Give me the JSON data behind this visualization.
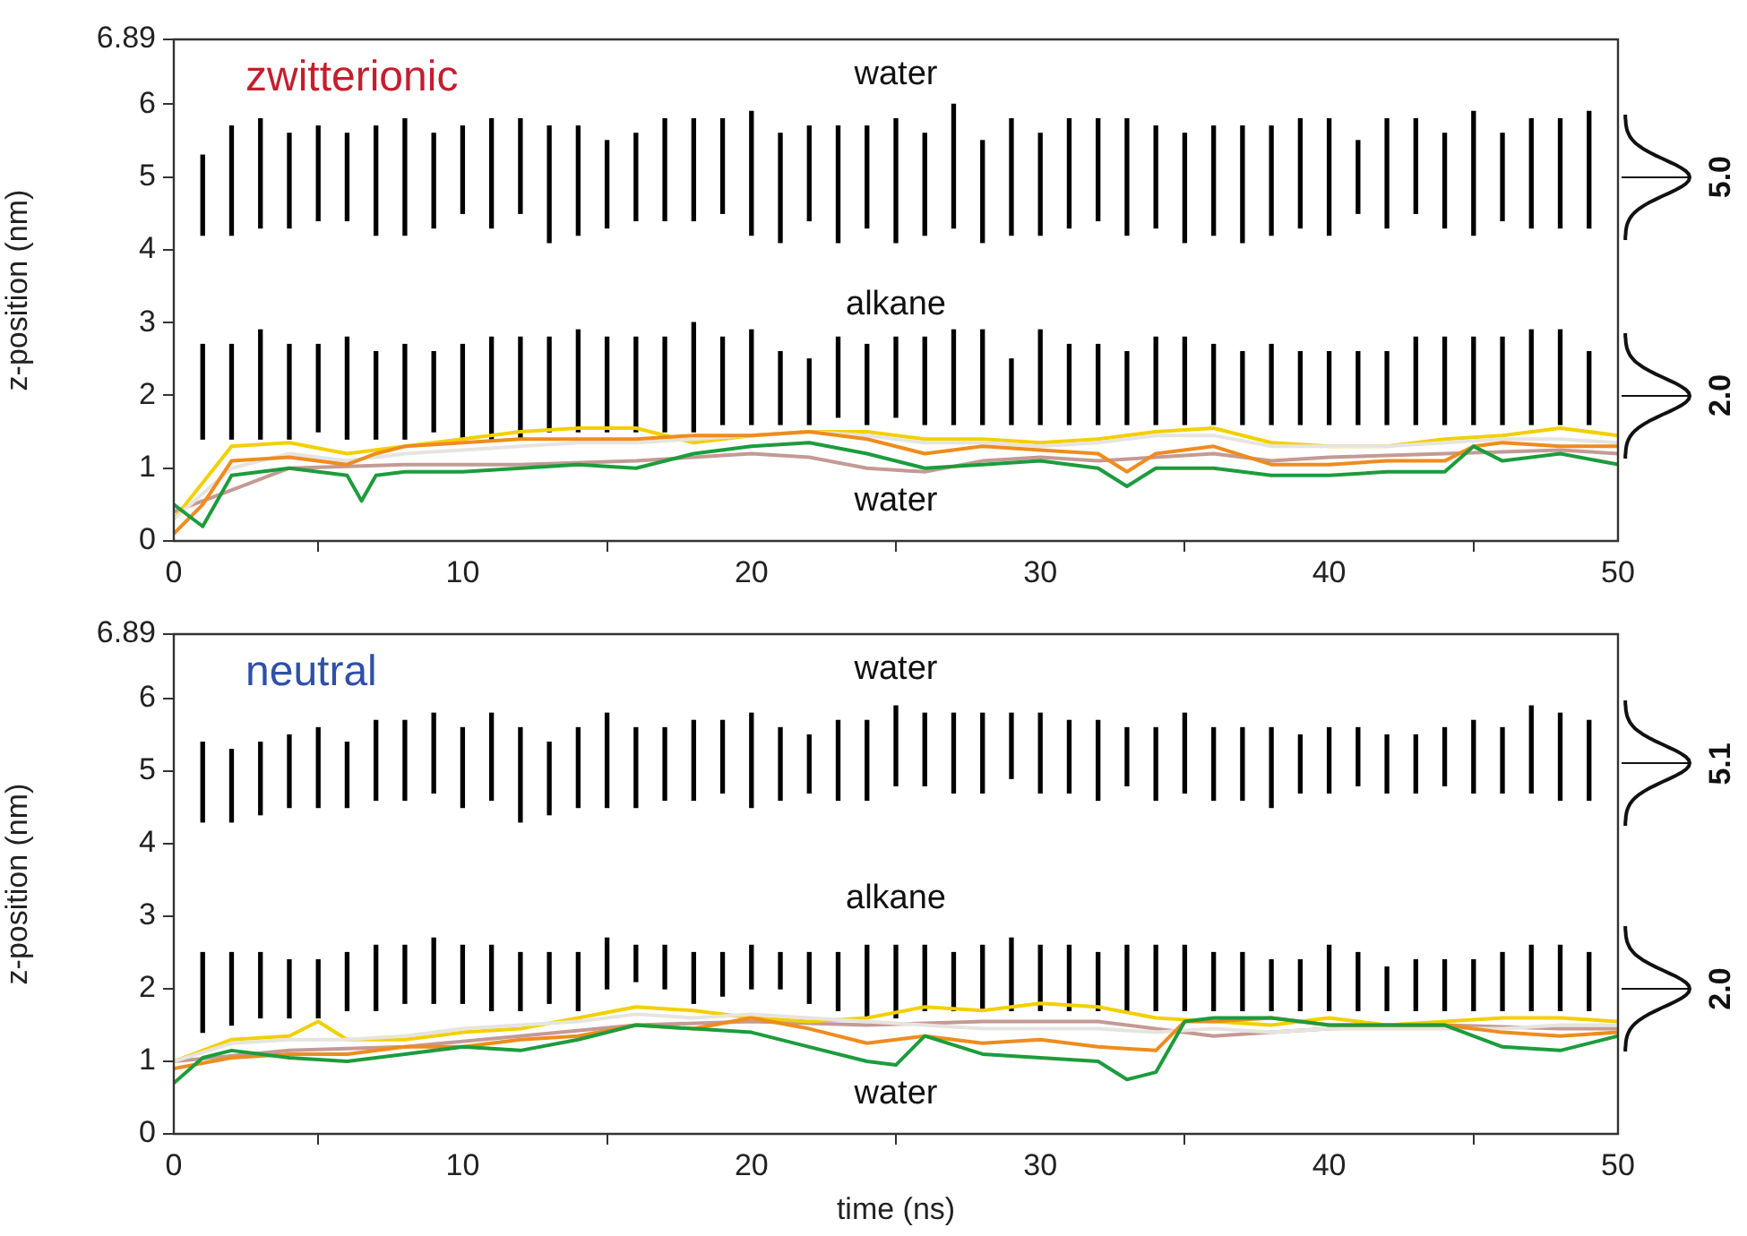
{
  "chart_data": [
    {
      "type": "line",
      "title": "zwitterionic",
      "ylabel": "z-position (nm)",
      "xlim": [
        0,
        50
      ],
      "xticks": [
        0,
        10,
        20,
        30,
        40,
        50
      ],
      "ylim": [
        0,
        6.89
      ],
      "yticks": [
        0,
        1,
        2,
        3,
        4,
        5,
        6,
        6.89
      ],
      "x": [
        1,
        2,
        3,
        4,
        5,
        6,
        7,
        8,
        9,
        10,
        11,
        12,
        13,
        14,
        15,
        16,
        17,
        18,
        19,
        20,
        21,
        22,
        23,
        24,
        25,
        26,
        27,
        28,
        29,
        30,
        31,
        32,
        33,
        34,
        35,
        36,
        37,
        38,
        39,
        40,
        41,
        42,
        43,
        44,
        45,
        46,
        47,
        48,
        49
      ],
      "annotations": [
        "water",
        "alkane",
        "water",
        "5.0",
        "2.0"
      ],
      "series": [
        {
          "type": "bar",
          "color": "#000000",
          "base": [
            4.2,
            4.2,
            4.3,
            4.3,
            4.4,
            4.4,
            4.2,
            4.2,
            4.3,
            4.5,
            4.3,
            4.5,
            4.1,
            4.2,
            4.3,
            4.4,
            4.4,
            4.4,
            4.5,
            4.2,
            4.1,
            4.4,
            4.1,
            4.3,
            4.1,
            4.2,
            4.3,
            4.1,
            4.2,
            4.2,
            4.3,
            4.4,
            4.2,
            4.3,
            4.1,
            4.2,
            4.1,
            4.2,
            4.3,
            4.2,
            4.5,
            4.3,
            4.5,
            4.3,
            4.2,
            4.4,
            4.3,
            4.3,
            4.3
          ],
          "values": [
            1.1,
            1.5,
            1.5,
            1.3,
            1.3,
            1.2,
            1.5,
            1.6,
            1.3,
            1.2,
            1.5,
            1.3,
            1.6,
            1.5,
            1.2,
            1.2,
            1.4,
            1.4,
            1.3,
            1.7,
            1.5,
            1.3,
            1.6,
            1.4,
            1.7,
            1.4,
            1.7,
            1.4,
            1.6,
            1.4,
            1.5,
            1.4,
            1.6,
            1.4,
            1.5,
            1.5,
            1.6,
            1.5,
            1.5,
            1.6,
            1.0,
            1.5,
            1.3,
            1.3,
            1.7,
            1.2,
            1.5,
            1.5,
            1.6
          ]
        },
        {
          "type": "bar",
          "color": "#000000",
          "base": [
            1.4,
            1.4,
            1.4,
            1.4,
            1.5,
            1.4,
            1.4,
            1.4,
            1.5,
            1.4,
            1.4,
            1.4,
            1.5,
            1.5,
            1.5,
            1.5,
            1.5,
            1.5,
            1.6,
            1.6,
            1.6,
            1.6,
            1.7,
            1.6,
            1.7,
            1.6,
            1.6,
            1.6,
            1.6,
            1.6,
            1.6,
            1.6,
            1.6,
            1.6,
            1.6,
            1.6,
            1.6,
            1.6,
            1.6,
            1.6,
            1.6,
            1.6,
            1.6,
            1.6,
            1.6,
            1.6,
            1.6,
            1.6,
            1.6
          ],
          "values": [
            1.3,
            1.3,
            1.5,
            1.3,
            1.2,
            1.4,
            1.2,
            1.3,
            1.1,
            1.3,
            1.4,
            1.4,
            1.3,
            1.4,
            1.3,
            1.3,
            1.3,
            1.5,
            1.2,
            1.3,
            1.0,
            0.9,
            1.1,
            1.1,
            1.1,
            1.2,
            1.3,
            1.3,
            0.9,
            1.3,
            1.1,
            1.1,
            1.0,
            1.2,
            1.2,
            1.1,
            1.0,
            1.1,
            1.0,
            1.0,
            1.0,
            1.0,
            1.2,
            1.2,
            1.2,
            1.2,
            1.3,
            1.3,
            1.0
          ]
        },
        {
          "color": "#c49a94",
          "x": [
            0,
            4,
            8,
            12,
            16,
            20,
            22,
            24,
            26,
            28,
            30,
            32,
            34,
            36,
            38,
            40,
            44,
            48,
            50
          ],
          "values": [
            0.4,
            1.0,
            1.05,
            1.05,
            1.1,
            1.2,
            1.15,
            1.0,
            0.95,
            1.1,
            1.15,
            1.1,
            1.15,
            1.2,
            1.1,
            1.15,
            1.2,
            1.25,
            1.2
          ]
        },
        {
          "color": "#f2d000",
          "x": [
            0,
            2,
            4,
            6,
            8,
            10,
            12,
            14,
            16,
            18,
            20,
            22,
            24,
            26,
            28,
            30,
            32,
            34,
            36,
            38,
            40,
            42,
            44,
            46,
            48,
            50
          ],
          "values": [
            0.3,
            1.3,
            1.35,
            1.2,
            1.3,
            1.4,
            1.5,
            1.55,
            1.55,
            1.35,
            1.45,
            1.5,
            1.5,
            1.4,
            1.4,
            1.35,
            1.4,
            1.5,
            1.55,
            1.35,
            1.3,
            1.3,
            1.4,
            1.45,
            1.55,
            1.45
          ]
        },
        {
          "color": "#e6e4df",
          "x": [
            0,
            2,
            4,
            6,
            8,
            10,
            12,
            14,
            16,
            18,
            20,
            22,
            24,
            26,
            28,
            30,
            32,
            34,
            36,
            38,
            40,
            42,
            44,
            46,
            48,
            50
          ],
          "values": [
            0.3,
            1.0,
            1.2,
            1.1,
            1.2,
            1.25,
            1.3,
            1.35,
            1.35,
            1.4,
            1.45,
            1.5,
            1.45,
            1.35,
            1.35,
            1.3,
            1.35,
            1.45,
            1.45,
            1.3,
            1.3,
            1.3,
            1.35,
            1.4,
            1.4,
            1.35
          ]
        },
        {
          "color": "#ee8c1e",
          "x": [
            0,
            1,
            2,
            4,
            6,
            7,
            8,
            10,
            12,
            14,
            16,
            18,
            20,
            22,
            24,
            26,
            28,
            30,
            32,
            33,
            34,
            36,
            38,
            40,
            42,
            44,
            45,
            46,
            48,
            50
          ],
          "values": [
            0.1,
            0.5,
            1.1,
            1.15,
            1.05,
            1.2,
            1.3,
            1.35,
            1.4,
            1.4,
            1.4,
            1.45,
            1.45,
            1.5,
            1.4,
            1.2,
            1.3,
            1.25,
            1.2,
            0.95,
            1.2,
            1.3,
            1.05,
            1.05,
            1.1,
            1.1,
            1.3,
            1.35,
            1.3,
            1.3
          ]
        },
        {
          "color": "#1c9c3c",
          "x": [
            0,
            1,
            2,
            4,
            6,
            6.5,
            7,
            8,
            10,
            12,
            14,
            16,
            18,
            20,
            22,
            24,
            26,
            28,
            30,
            32,
            33,
            34,
            36,
            38,
            40,
            42,
            44,
            45,
            46,
            48,
            50
          ],
          "values": [
            0.5,
            0.2,
            0.9,
            1.0,
            0.9,
            0.55,
            0.9,
            0.95,
            0.95,
            1.0,
            1.05,
            1.0,
            1.2,
            1.3,
            1.35,
            1.2,
            1.0,
            1.05,
            1.1,
            1.0,
            0.75,
            1.0,
            1.0,
            0.9,
            0.9,
            0.95,
            0.95,
            1.3,
            1.1,
            1.2,
            1.05
          ]
        }
      ]
    },
    {
      "type": "line",
      "title": "neutral",
      "xlabel": "time (ns)",
      "ylabel": "z-position (nm)",
      "xlim": [
        0,
        50
      ],
      "xticks": [
        0,
        10,
        20,
        30,
        40,
        50
      ],
      "ylim": [
        0,
        6.89
      ],
      "yticks": [
        0,
        1,
        2,
        3,
        4,
        5,
        6,
        6.89
      ],
      "x": [
        1,
        2,
        3,
        4,
        5,
        6,
        7,
        8,
        9,
        10,
        11,
        12,
        13,
        14,
        15,
        16,
        17,
        18,
        19,
        20,
        21,
        22,
        23,
        24,
        25,
        26,
        27,
        28,
        29,
        30,
        31,
        32,
        33,
        34,
        35,
        36,
        37,
        38,
        39,
        40,
        41,
        42,
        43,
        44,
        45,
        46,
        47,
        48,
        49
      ],
      "annotations": [
        "water",
        "alkane",
        "water",
        "5.1",
        "2.0"
      ],
      "series": [
        {
          "type": "bar",
          "color": "#000000",
          "base": [
            4.3,
            4.3,
            4.4,
            4.5,
            4.5,
            4.5,
            4.6,
            4.6,
            4.7,
            4.5,
            4.6,
            4.3,
            4.4,
            4.5,
            4.5,
            4.5,
            4.6,
            4.6,
            4.7,
            4.5,
            4.6,
            4.7,
            4.6,
            4.6,
            4.8,
            4.8,
            4.7,
            4.7,
            4.9,
            4.7,
            4.7,
            4.6,
            4.8,
            4.6,
            4.7,
            4.6,
            4.6,
            4.5,
            4.7,
            4.7,
            4.8,
            4.7,
            4.7,
            4.8,
            4.7,
            4.7,
            4.7,
            4.6,
            4.6
          ],
          "values": [
            1.1,
            1.0,
            1.0,
            1.0,
            1.1,
            0.9,
            1.1,
            1.1,
            1.1,
            1.1,
            1.2,
            1.3,
            1.0,
            1.1,
            1.3,
            1.1,
            1.0,
            1.1,
            1.0,
            1.3,
            1.0,
            0.8,
            1.1,
            1.1,
            1.1,
            1.0,
            1.1,
            1.1,
            0.9,
            1.1,
            1.0,
            1.1,
            0.8,
            1.0,
            1.1,
            1.0,
            1.0,
            1.1,
            0.8,
            0.9,
            0.8,
            0.8,
            0.8,
            0.8,
            1.0,
            0.9,
            1.2,
            1.2,
            1.1
          ]
        },
        {
          "type": "bar",
          "color": "#000000",
          "base": [
            1.4,
            1.5,
            1.6,
            1.6,
            1.6,
            1.7,
            1.7,
            1.8,
            1.8,
            1.8,
            1.7,
            1.7,
            1.8,
            1.7,
            2.0,
            2.1,
            2.0,
            1.8,
            1.9,
            2.0,
            2.0,
            1.8,
            1.7,
            1.6,
            1.6,
            1.7,
            1.7,
            1.7,
            1.7,
            1.7,
            1.7,
            1.7,
            1.7,
            1.7,
            1.7,
            1.7,
            1.7,
            1.7,
            1.7,
            1.7,
            1.7,
            1.7,
            1.7,
            1.7,
            1.7,
            1.7,
            1.7,
            1.7,
            1.7
          ],
          "values": [
            1.1,
            1.0,
            0.9,
            0.8,
            0.8,
            0.8,
            0.9,
            0.8,
            0.9,
            0.8,
            0.9,
            0.8,
            0.7,
            0.8,
            0.7,
            0.5,
            0.6,
            0.7,
            0.6,
            0.6,
            0.5,
            0.7,
            0.8,
            1.0,
            1.0,
            0.9,
            0.8,
            0.9,
            1.0,
            0.9,
            0.9,
            0.8,
            0.9,
            0.9,
            0.9,
            0.8,
            0.8,
            0.7,
            0.7,
            0.9,
            0.8,
            0.6,
            0.7,
            0.7,
            0.7,
            0.8,
            0.9,
            0.9,
            0.8
          ]
        },
        {
          "color": "#c49a94",
          "x": [
            0,
            4,
            8,
            12,
            16,
            20,
            24,
            28,
            32,
            36,
            38,
            40,
            44,
            48,
            50
          ],
          "values": [
            1.0,
            1.15,
            1.2,
            1.35,
            1.5,
            1.55,
            1.5,
            1.55,
            1.55,
            1.35,
            1.4,
            1.45,
            1.5,
            1.45,
            1.45
          ]
        },
        {
          "color": "#f2d000",
          "x": [
            0,
            2,
            4,
            5,
            6,
            8,
            10,
            12,
            14,
            16,
            18,
            20,
            22,
            24,
            26,
            28,
            30,
            32,
            34,
            36,
            38,
            40,
            42,
            44,
            46,
            48,
            50
          ],
          "values": [
            1.0,
            1.3,
            1.35,
            1.55,
            1.3,
            1.3,
            1.4,
            1.45,
            1.6,
            1.75,
            1.7,
            1.6,
            1.55,
            1.6,
            1.75,
            1.7,
            1.8,
            1.75,
            1.6,
            1.55,
            1.5,
            1.6,
            1.5,
            1.55,
            1.6,
            1.6,
            1.55
          ]
        },
        {
          "color": "#e6e4df",
          "x": [
            0,
            2,
            4,
            6,
            8,
            10,
            12,
            14,
            16,
            18,
            20,
            22,
            24,
            26,
            28,
            30,
            32,
            34,
            36,
            38,
            40,
            42,
            44,
            46,
            48,
            50
          ],
          "values": [
            1.0,
            1.25,
            1.3,
            1.3,
            1.35,
            1.45,
            1.5,
            1.55,
            1.65,
            1.6,
            1.65,
            1.6,
            1.55,
            1.5,
            1.45,
            1.45,
            1.45,
            1.4,
            1.45,
            1.4,
            1.45,
            1.45,
            1.45,
            1.45,
            1.5,
            1.5
          ]
        },
        {
          "color": "#ee8c1e",
          "x": [
            0,
            2,
            4,
            6,
            8,
            10,
            12,
            14,
            16,
            18,
            20,
            22,
            24,
            26,
            28,
            30,
            32,
            34,
            35,
            36,
            38,
            40,
            42,
            44,
            46,
            48,
            50
          ],
          "values": [
            0.9,
            1.05,
            1.1,
            1.1,
            1.2,
            1.2,
            1.3,
            1.35,
            1.5,
            1.45,
            1.6,
            1.45,
            1.25,
            1.35,
            1.25,
            1.3,
            1.2,
            1.15,
            1.55,
            1.55,
            1.6,
            1.5,
            1.5,
            1.5,
            1.4,
            1.35,
            1.4
          ]
        },
        {
          "color": "#1c9c3c",
          "x": [
            0,
            1,
            2,
            4,
            6,
            8,
            10,
            12,
            14,
            16,
            18,
            20,
            22,
            24,
            25,
            26,
            28,
            30,
            32,
            33,
            34,
            35,
            36,
            38,
            40,
            42,
            44,
            46,
            48,
            50
          ],
          "values": [
            0.7,
            1.05,
            1.15,
            1.05,
            1.0,
            1.1,
            1.2,
            1.15,
            1.3,
            1.5,
            1.45,
            1.4,
            1.2,
            1.0,
            0.95,
            1.35,
            1.1,
            1.05,
            1.0,
            0.75,
            0.85,
            1.55,
            1.6,
            1.6,
            1.5,
            1.5,
            1.5,
            1.2,
            1.15,
            1.35
          ]
        }
      ]
    }
  ]
}
